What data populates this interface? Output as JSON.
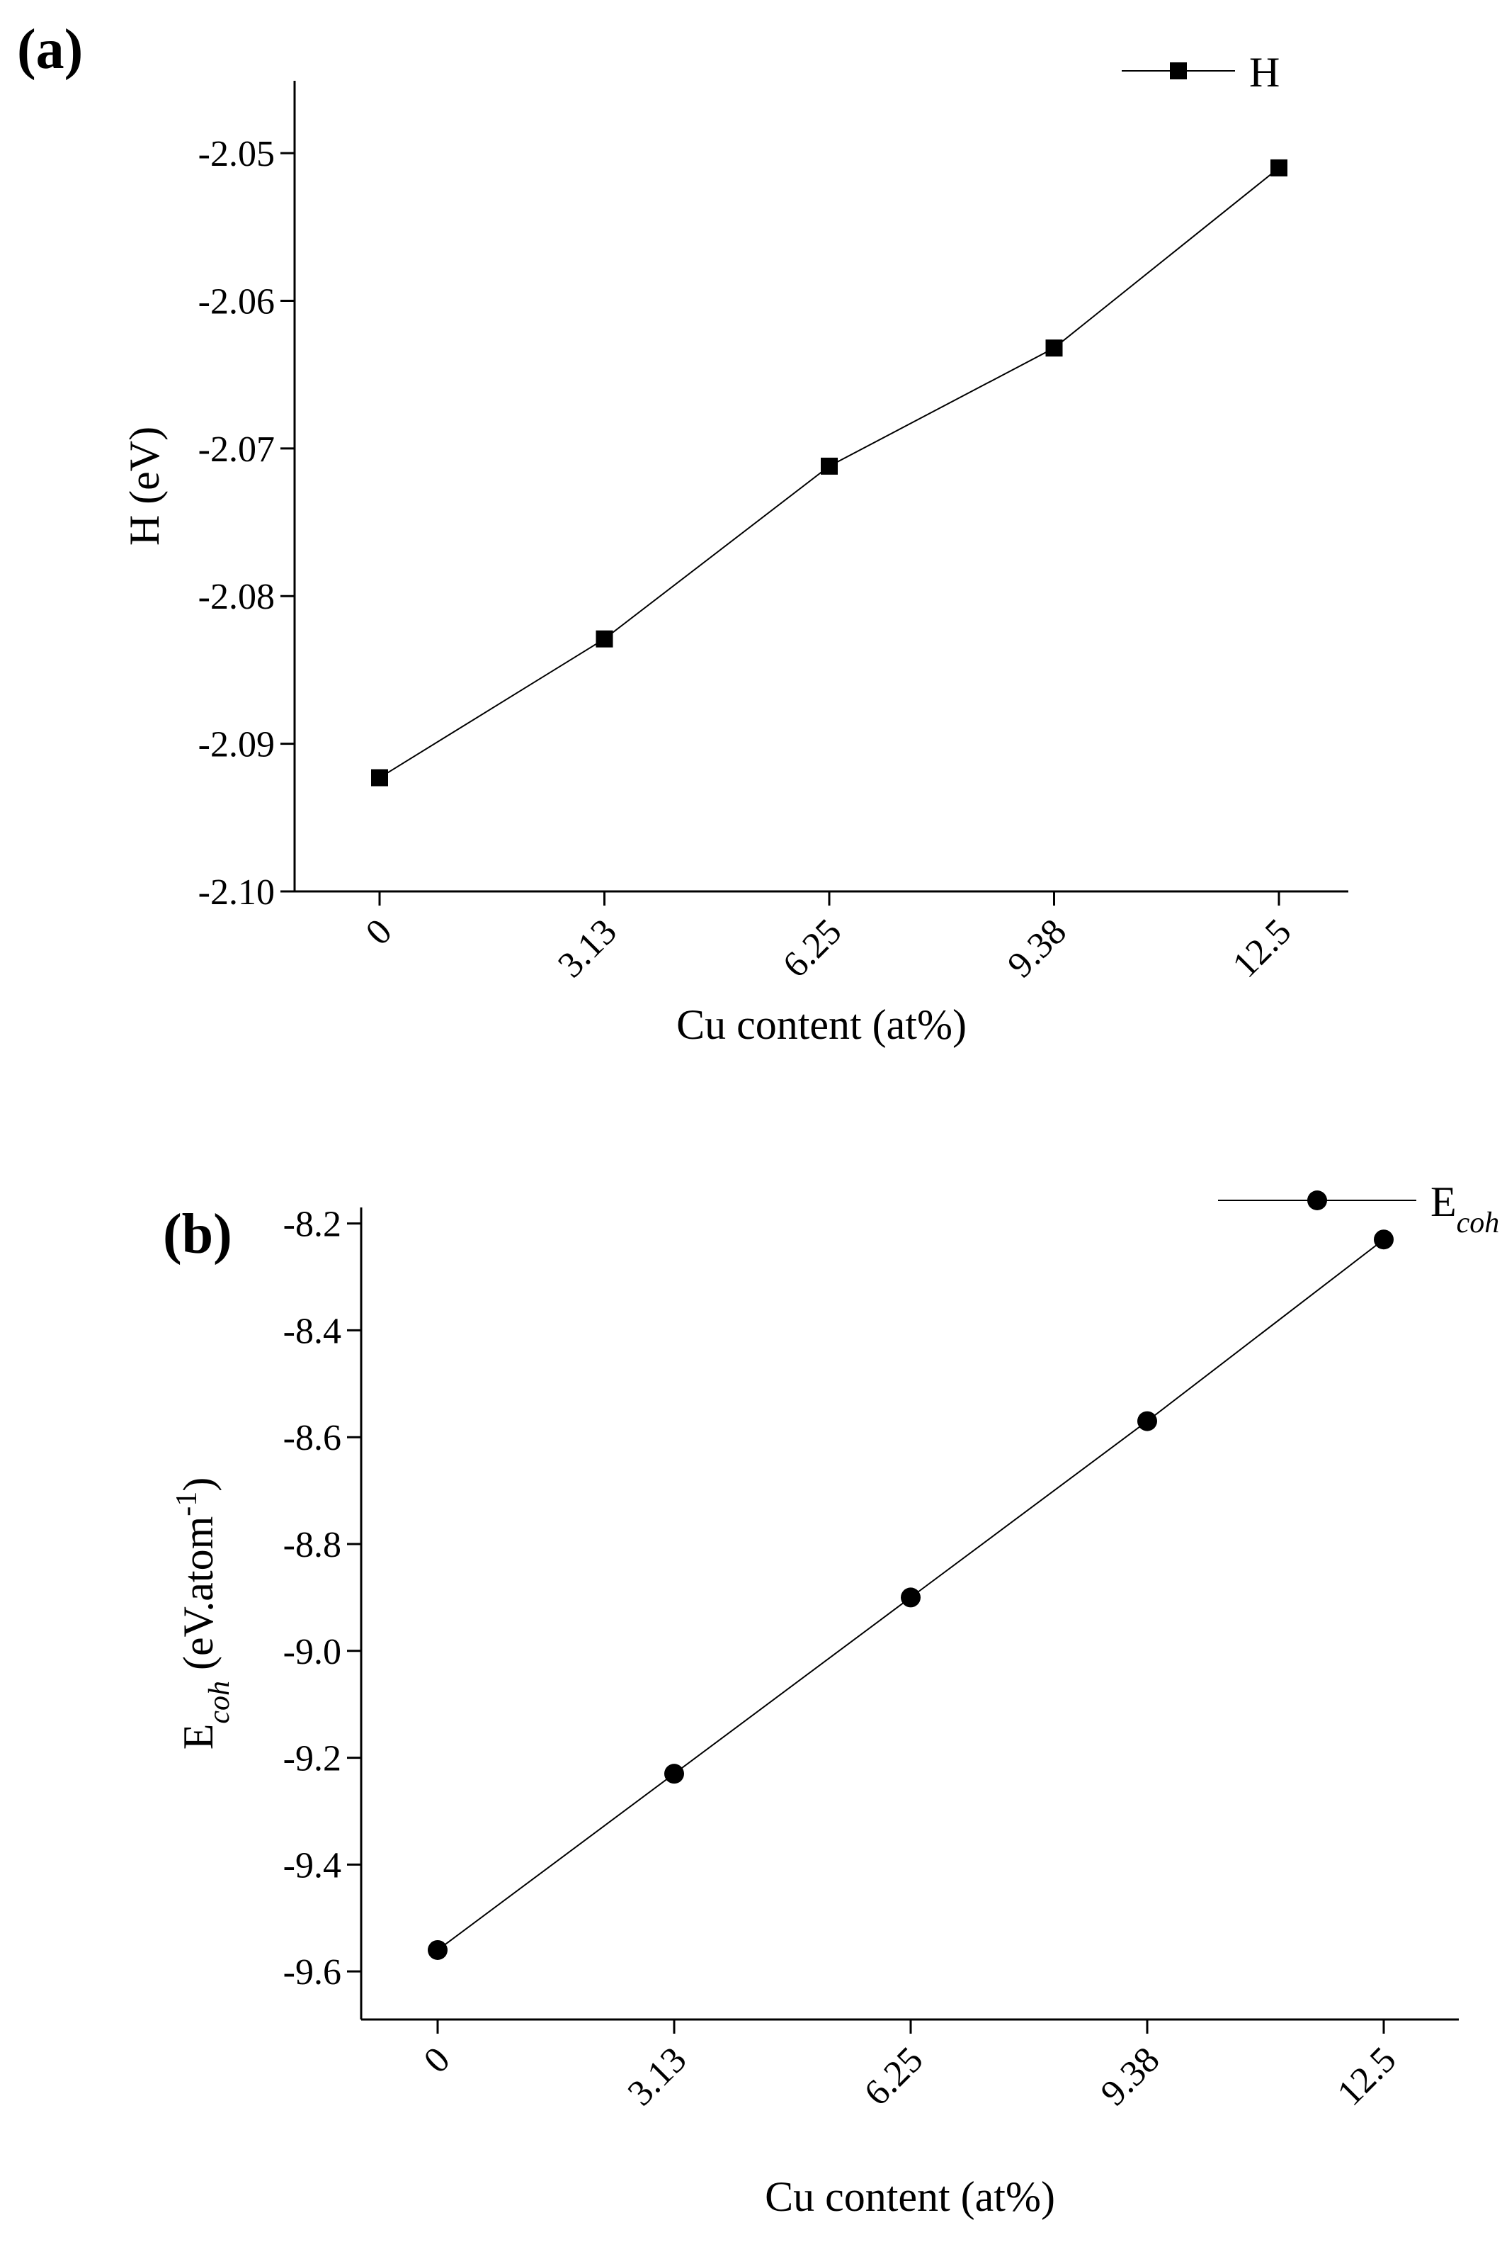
{
  "chart_data": [
    {
      "type": "line",
      "label": "(a)",
      "xlabel": "Cu content (at%)",
      "ylabel": [
        "H (eV)"
      ],
      "categories": [
        "0",
        "3.13",
        "6.25",
        "9.38",
        "12.5"
      ],
      "series": [
        {
          "name": [
            "H"
          ],
          "color": "#000000",
          "marker": "square",
          "values": [
            -2.0923,
            -2.0829,
            -2.0712,
            -2.0632,
            -2.051
          ]
        }
      ],
      "ylim": [
        -2.1,
        -2.0451
      ],
      "yticks": [
        {
          "value": -2.1,
          "label": "-2.10"
        },
        -2.09,
        -2.08,
        -2.07,
        -2.06,
        -2.05
      ],
      "legend": "upper right"
    },
    {
      "type": "line",
      "label": "(b)",
      "xlabel": "Cu content (at%)",
      "ylabel": [
        "E",
        "coh",
        " (eV.atom",
        "-1",
        ")"
      ],
      "categories": [
        "0",
        "3.13",
        "6.25",
        "9.38",
        "12.5"
      ],
      "series": [
        {
          "name": [
            "E",
            "coh"
          ],
          "color": "#000000",
          "marker": "circle",
          "values": [
            -9.56,
            -9.23,
            -8.9,
            -8.57,
            -8.23
          ]
        }
      ],
      "ylim": [
        -9.69,
        -8.17
      ],
      "yticks": [
        -9.6,
        -9.4,
        -9.2,
        {
          "value": -9.0,
          "label": "-9.0"
        },
        -8.8,
        -8.6,
        -8.4,
        -8.2
      ],
      "legend": "upper right"
    }
  ]
}
